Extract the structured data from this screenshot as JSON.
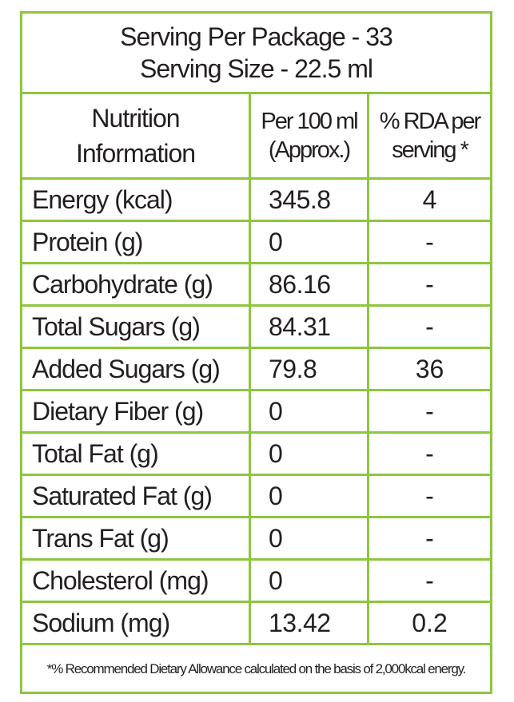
{
  "header": {
    "line1": "Serving Per Package - 33",
    "line2": "Serving Size - 22.5 ml"
  },
  "columns": {
    "nutrient_line1": "Nutrition",
    "nutrient_line2": "Information",
    "per100_line1": "Per 100 ml",
    "per100_line2": "(Approx.)",
    "rda_line1": "% RDA per",
    "rda_line2": "serving *"
  },
  "rows": [
    {
      "name": "Energy (kcal)",
      "per100": "345.8",
      "rda": "4"
    },
    {
      "name": "Protein (g)",
      "per100": "0",
      "rda": "-"
    },
    {
      "name": "Carbohydrate (g)",
      "per100": "86.16",
      "rda": "-"
    },
    {
      "name": "Total Sugars (g)",
      "per100": "84.31",
      "rda": "-"
    },
    {
      "name": "Added Sugars (g)",
      "per100": "79.8",
      "rda": "36"
    },
    {
      "name": "Dietary Fiber (g)",
      "per100": "0",
      "rda": "-"
    },
    {
      "name": "Total Fat (g)",
      "per100": "0",
      "rda": "-"
    },
    {
      "name": "Saturated Fat (g)",
      "per100": "0",
      "rda": "-"
    },
    {
      "name": "Trans Fat (g)",
      "per100": "0",
      "rda": "-"
    },
    {
      "name": "Cholesterol (mg)",
      "per100": "0",
      "rda": "-"
    },
    {
      "name": "Sodium (mg)",
      "per100": "13.42",
      "rda": "0.2"
    }
  ],
  "footnote": "*% Recommended Dietary Allowance calculated on the basis of 2,000kcal energy."
}
